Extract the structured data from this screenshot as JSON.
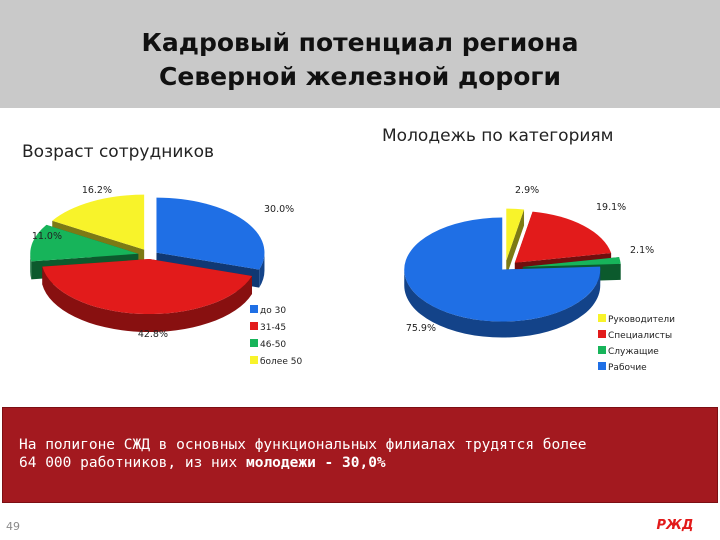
{
  "title_line1": "Кадровый потенциал региона",
  "title_line2": "Северной железной дороги",
  "chart_data": [
    {
      "type": "pie",
      "title": "Возраст сотрудников",
      "categories": [
        "до 30",
        "31-45",
        "46-50",
        "более 50"
      ],
      "values": [
        30.0,
        42.8,
        11.0,
        16.2
      ],
      "labels": [
        "30.0%",
        "42.8%",
        "11.0%",
        "16.2%"
      ],
      "colors": [
        "#1f6fe5",
        "#e21b1b",
        "#17b45a",
        "#f8f32a"
      ],
      "legend": "bottom-right",
      "exploded": true
    },
    {
      "type": "pie",
      "title": "Молодежь по категориям",
      "categories": [
        "Руководители",
        "Специалисты",
        "Служащие",
        "Рабочие"
      ],
      "values": [
        2.9,
        19.1,
        2.1,
        75.9
      ],
      "labels": [
        "2.9%",
        "19.1%",
        "2.1%",
        "75.9%"
      ],
      "colors": [
        "#f8f32a",
        "#e21b1b",
        "#17b45a",
        "#1f6fe5"
      ],
      "legend": "bottom-right",
      "exploded": true
    }
  ],
  "banner": {
    "text_line1": "На полигоне СЖД в основных функциональных филиалах трудятся более",
    "text_line2_prefix": "64 000 работников, из них ",
    "text_line2_bold": "молодежи - 30,0%"
  },
  "page_number": "49",
  "logo_text": "РЖД",
  "colors": {
    "header_bg": "#c9c9c9",
    "banner_bg": "#a3191f",
    "logo": "#e21a1a"
  }
}
